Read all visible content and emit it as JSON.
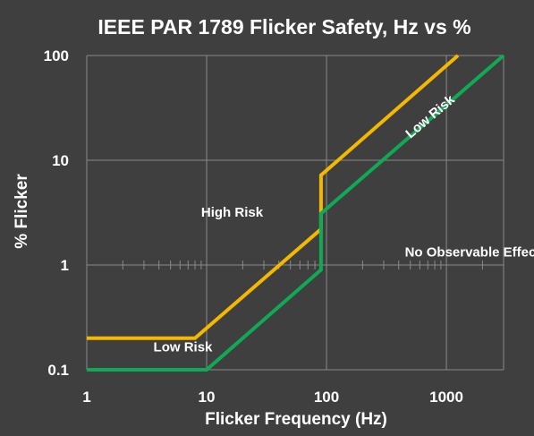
{
  "chart_data": {
    "type": "line",
    "title": "IEEE PAR 1789 Flicker Safety, Hz vs %",
    "xlabel": "Flicker Frequency (Hz)",
    "ylabel": "% Flicker",
    "x_scale": "log",
    "y_scale": "log",
    "xlim": [
      1,
      3000
    ],
    "ylim": [
      0.1,
      100
    ],
    "x_ticks": [
      1,
      10,
      100,
      1000
    ],
    "x_tick_labels": [
      "1",
      "10",
      "100",
      "1000"
    ],
    "y_ticks": [
      0.1,
      1,
      10,
      100
    ],
    "y_tick_labels": [
      "0.1",
      "1",
      "10",
      "100"
    ],
    "grid": "major gridlines on both axes, minor tick marks along y = 1",
    "legend": "none",
    "series": [
      {
        "color": "#f5b800",
        "points": [
          [
            1,
            0.2
          ],
          [
            8,
            0.2
          ],
          [
            90,
            2.2
          ],
          [
            90,
            7.2
          ],
          [
            1250,
            100
          ]
        ]
      },
      {
        "color": "#0faa55",
        "points": [
          [
            1,
            0.1
          ],
          [
            10,
            0.1
          ],
          [
            90,
            0.9
          ],
          [
            90,
            3.1
          ],
          [
            3000,
            100
          ]
        ]
      }
    ],
    "annotations": [
      {
        "text": "High Risk",
        "x": 9,
        "y": 2.9
      },
      {
        "text": "Low Risk",
        "x": 3.6,
        "y": 0.15
      },
      {
        "text": "Low Risk",
        "x": 500,
        "y": 16,
        "rotate": -40
      },
      {
        "text": "No Observable Effect",
        "x": 450,
        "y": 1.2
      }
    ],
    "colors": {
      "background": "#3f3f3f",
      "grid": "#8a8a8a",
      "text": "#ffffff"
    }
  }
}
